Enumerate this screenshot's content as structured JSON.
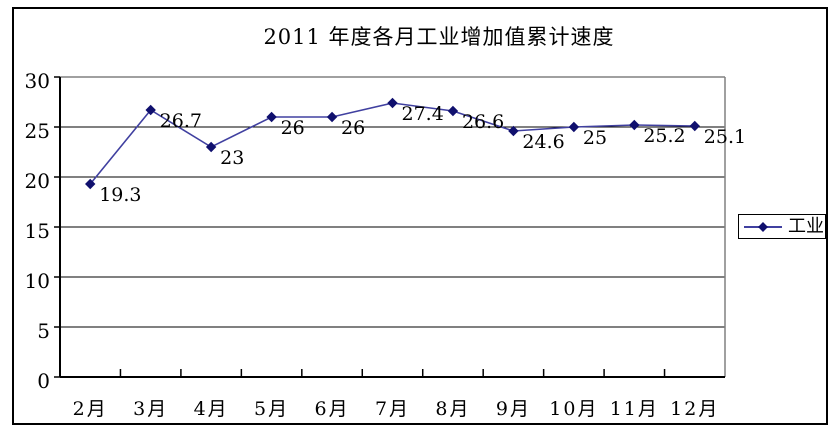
{
  "chart_data": {
    "type": "line",
    "title": "2011 年度各月工业增加值累计速度",
    "categories": [
      "2月",
      "3月",
      "4月",
      "5月",
      "6月",
      "7月",
      "8月",
      "9月",
      "10月",
      "11月",
      "12月"
    ],
    "series": [
      {
        "name": "工业",
        "values": [
          19.3,
          26.7,
          23,
          26,
          26,
          27.4,
          26.6,
          24.6,
          25,
          25.2,
          25.1
        ]
      }
    ],
    "data_labels": [
      "19.3",
      "26.7",
      "23",
      "26",
      "26",
      "27.4",
      "26.6",
      "24.6",
      "25",
      "25.2",
      "25.1"
    ],
    "xlabel": "",
    "ylabel": "",
    "ylim": [
      0,
      30
    ],
    "yticks": [
      0,
      5,
      10,
      15,
      20,
      25,
      30
    ],
    "grid": true,
    "legend_position": "right",
    "colors": {
      "line": "#4040a0",
      "marker": "#10106e",
      "gridline": "#000000",
      "axis": "#000000",
      "plot_border": "#808080",
      "chart_border": "#000000",
      "background": "#ffffff",
      "text": "#000000"
    }
  }
}
